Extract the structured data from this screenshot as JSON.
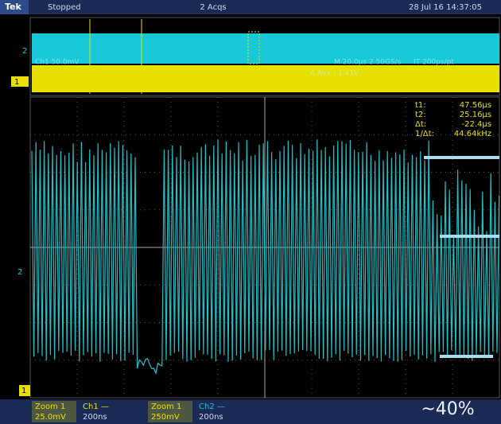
{
  "header": {
    "brand": "Tek",
    "status": "Stopped",
    "acquisitions": "2 Acqs",
    "datetime": "28 Jul 16 14:37:05"
  },
  "overview": {
    "ch2_marker": "2",
    "ch1_marker": "1",
    "readouts": [
      "Ch1  50.0mV",
      "M 20.0µs 2.50GS/s",
      "IT 200ps/pt",
      "A  Aux  /  1.41V"
    ]
  },
  "cursors": [
    {
      "label": "t1:",
      "value": "47.56µs"
    },
    {
      "label": "t2:",
      "value": "25.16µs"
    },
    {
      "label": "Δt:",
      "value": "-22.4µs"
    },
    {
      "label": "1/Δt:",
      "value": "44.64kHz"
    }
  ],
  "main": {
    "ch2_marker": "2",
    "ch1_marker": "1"
  },
  "footer": {
    "zoom_a": "Zoom 1",
    "zoom_a_scale": "25.0mV",
    "ch1": "Ch1 —",
    "ch1_time": "200ns",
    "zoom_b": "Zoom 1",
    "zoom_b_scale": "250mV",
    "ch2": "Ch2 —",
    "ch2_time": "200ns"
  },
  "annotation": "~40%"
}
